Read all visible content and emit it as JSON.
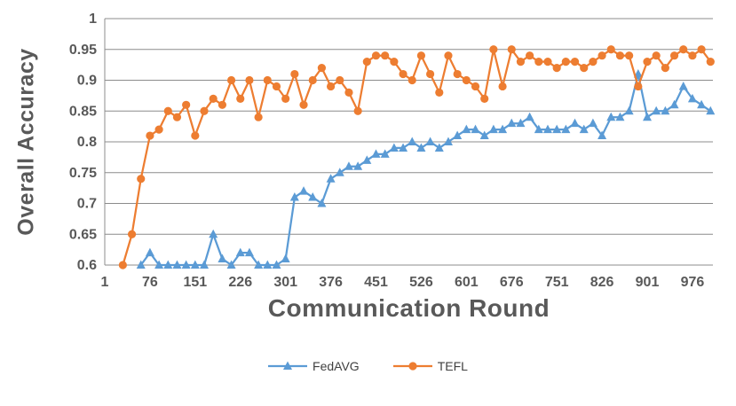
{
  "chart_data": {
    "type": "line",
    "title": "",
    "xlabel": "Communication Round",
    "ylabel": "Overall Accuracy",
    "xlim": [
      1,
      1010
    ],
    "ylim": [
      0.6,
      1.0
    ],
    "xticks": [
      1,
      76,
      151,
      226,
      301,
      376,
      451,
      526,
      601,
      676,
      751,
      826,
      901,
      976
    ],
    "yticks": [
      0.6,
      0.65,
      0.7,
      0.75,
      0.8,
      0.85,
      0.9,
      0.95,
      1
    ],
    "ytick_labels": [
      "0.6",
      "0.65",
      "0.7",
      "0.75",
      "0.8",
      "0.85",
      "0.9",
      "0.95",
      "1"
    ],
    "grid": true,
    "grid_color": "#8C8C8C",
    "axis_color": "#8C8C8C",
    "legend_position": "bottom",
    "series": [
      {
        "name": "FedAVG",
        "color": "#5B9BD5",
        "marker": "triangle",
        "x": [
          61,
          76,
          91,
          106,
          121,
          136,
          151,
          166,
          181,
          196,
          211,
          226,
          241,
          256,
          271,
          286,
          301,
          316,
          331,
          346,
          361,
          376,
          391,
          406,
          421,
          436,
          451,
          466,
          481,
          496,
          511,
          526,
          541,
          556,
          571,
          586,
          601,
          616,
          631,
          646,
          661,
          676,
          691,
          706,
          721,
          736,
          751,
          766,
          781,
          796,
          811,
          826,
          841,
          856,
          871,
          886,
          901,
          916,
          931,
          946,
          961,
          976,
          991,
          1006
        ],
        "y": [
          0.6,
          0.62,
          0.6,
          0.6,
          0.6,
          0.6,
          0.6,
          0.6,
          0.65,
          0.61,
          0.6,
          0.62,
          0.62,
          0.6,
          0.6,
          0.6,
          0.61,
          0.71,
          0.72,
          0.71,
          0.7,
          0.74,
          0.75,
          0.76,
          0.76,
          0.77,
          0.78,
          0.78,
          0.79,
          0.79,
          0.8,
          0.79,
          0.8,
          0.79,
          0.8,
          0.81,
          0.82,
          0.82,
          0.81,
          0.82,
          0.82,
          0.83,
          0.83,
          0.84,
          0.82,
          0.82,
          0.82,
          0.82,
          0.83,
          0.82,
          0.83,
          0.81,
          0.84,
          0.84,
          0.85,
          0.91,
          0.84,
          0.85,
          0.85,
          0.86,
          0.89,
          0.87,
          0.86,
          0.85
        ]
      },
      {
        "name": "TEFL",
        "color": "#ED7D31",
        "marker": "circle",
        "x": [
          31,
          46,
          61,
          76,
          91,
          106,
          121,
          136,
          151,
          166,
          181,
          196,
          211,
          226,
          241,
          256,
          271,
          286,
          301,
          316,
          331,
          346,
          361,
          376,
          391,
          406,
          421,
          436,
          451,
          466,
          481,
          496,
          511,
          526,
          541,
          556,
          571,
          586,
          601,
          616,
          631,
          646,
          661,
          676,
          691,
          706,
          721,
          736,
          751,
          766,
          781,
          796,
          811,
          826,
          841,
          856,
          871,
          886,
          901,
          916,
          931,
          946,
          961,
          976,
          991,
          1006
        ],
        "y": [
          0.6,
          0.65,
          0.74,
          0.81,
          0.82,
          0.85,
          0.84,
          0.86,
          0.81,
          0.85,
          0.87,
          0.86,
          0.9,
          0.87,
          0.9,
          0.84,
          0.9,
          0.89,
          0.87,
          0.91,
          0.86,
          0.9,
          0.92,
          0.89,
          0.9,
          0.88,
          0.85,
          0.93,
          0.94,
          0.94,
          0.93,
          0.91,
          0.9,
          0.94,
          0.91,
          0.88,
          0.94,
          0.91,
          0.9,
          0.89,
          0.87,
          0.95,
          0.89,
          0.95,
          0.93,
          0.94,
          0.93,
          0.93,
          0.92,
          0.93,
          0.93,
          0.92,
          0.93,
          0.94,
          0.95,
          0.94,
          0.94,
          0.89,
          0.93,
          0.94,
          0.92,
          0.94,
          0.95,
          0.94,
          0.95,
          0.93
        ]
      }
    ]
  }
}
